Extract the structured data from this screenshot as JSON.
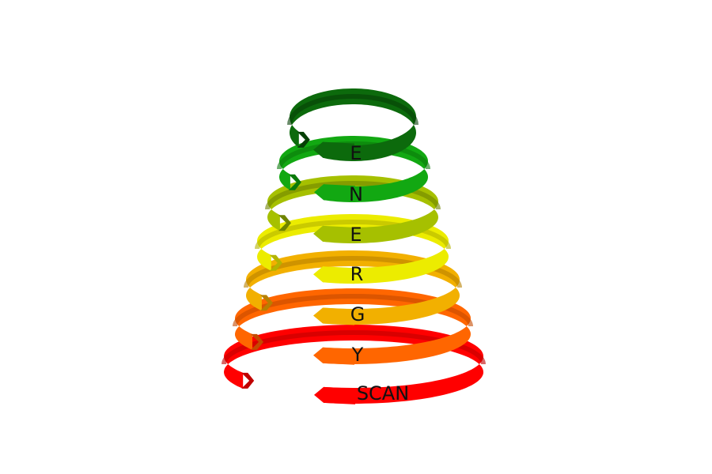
{
  "logo": {
    "letters": [
      "E",
      "N",
      "E",
      "R",
      "G",
      "Y",
      "SCAN"
    ],
    "ring_colors": [
      "#0c6a0c",
      "#12a812",
      "#a6c000",
      "#ecec00",
      "#f2b000",
      "#ff6600",
      "#ff0000"
    ],
    "ring_shade_colors": [
      "#063f06",
      "#0a7a0a",
      "#6f8400",
      "#b4b400",
      "#b88000",
      "#c44a00",
      "#c00000"
    ]
  }
}
